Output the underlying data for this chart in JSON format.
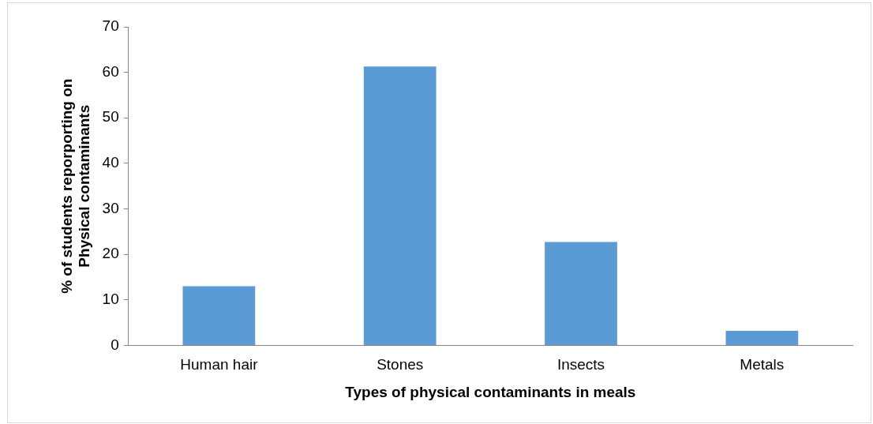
{
  "chart_data": {
    "type": "bar",
    "xlabel": "Types of physical contaminants in meals",
    "ylabel": [
      "% of students reporporting on",
      "Physical contaminants"
    ],
    "categories": [
      "Human hair",
      "Stones",
      "Insects",
      "Metals"
    ],
    "values": [
      13,
      61.3,
      22.7,
      3.2
    ],
    "color": "#5b9bd5",
    "ylim": [
      0,
      70
    ],
    "yticks": [
      0,
      10,
      20,
      30,
      40,
      50,
      60,
      70
    ],
    "grid": false,
    "legend": false
  }
}
